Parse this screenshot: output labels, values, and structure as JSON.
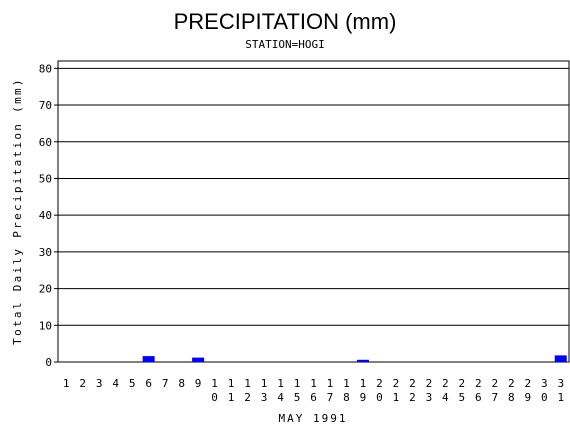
{
  "chart_data": {
    "type": "bar",
    "title": "PRECIPITATION (mm)",
    "subtitle": "STATION=HOGI",
    "x_label": "MAY 1991",
    "y_label": "Total Daily Precipitation (mm)",
    "categories": [
      "1",
      "2",
      "3",
      "4",
      "5",
      "6",
      "7",
      "8",
      "9",
      "10",
      "11",
      "12",
      "13",
      "14",
      "15",
      "16",
      "17",
      "18",
      "19",
      "20",
      "21",
      "22",
      "23",
      "24",
      "25",
      "26",
      "27",
      "28",
      "29",
      "30",
      "31"
    ],
    "values": [
      0,
      0,
      0,
      0,
      0,
      1.6,
      0,
      0,
      1.2,
      0,
      0,
      0,
      0,
      0,
      0,
      0,
      0,
      0,
      0.6,
      0,
      0,
      0,
      0,
      0,
      0,
      0,
      0,
      0,
      0,
      0,
      1.8
    ],
    "color": "#0000ff",
    "ylim": [
      0,
      82
    ],
    "yticks": [
      0,
      10,
      20,
      30,
      40,
      50,
      60,
      70,
      80
    ],
    "grid": true
  }
}
